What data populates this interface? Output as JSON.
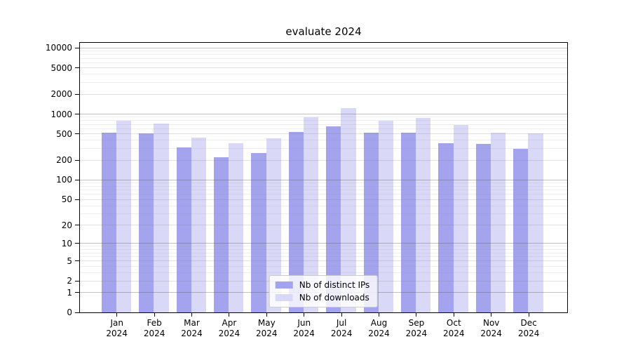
{
  "title": "evaluate 2024",
  "legend": {
    "position": "lower center",
    "items": [
      {
        "label": "Nb of distinct IPs",
        "color": "#a3a3ee"
      },
      {
        "label": "Nb of downloads",
        "color": "#d9d9f7"
      }
    ]
  },
  "y_axis": {
    "tick_labels": [
      "0",
      "1",
      "2",
      "5",
      "10",
      "20",
      "50",
      "100",
      "200",
      "500",
      "1000",
      "2000",
      "5000",
      "10000"
    ]
  },
  "grid_colors": {
    "major": "rgba(80,80,80,0.35)",
    "mid": "rgba(120,120,120,0.22)",
    "minor": "rgba(150,150,150,0.15)"
  },
  "chart_data": {
    "type": "bar",
    "title": "evaluate 2024",
    "categories": [
      "Jan 2024",
      "Feb 2024",
      "Mar 2024",
      "Apr 2024",
      "May 2024",
      "Jun 2024",
      "Jul 2024",
      "Aug 2024",
      "Sep 2024",
      "Oct 2024",
      "Nov 2024",
      "Dec 2024"
    ],
    "series": [
      {
        "name": "Nb of distinct IPs",
        "color": "#a3a3ee",
        "values": [
          520,
          510,
          310,
          220,
          260,
          540,
          660,
          525,
          525,
          360,
          350,
          295
        ]
      },
      {
        "name": "Nb of downloads",
        "color": "#d9d9f7",
        "values": [
          790,
          715,
          440,
          360,
          435,
          905,
          1220,
          800,
          885,
          690,
          520,
          515
        ]
      }
    ],
    "y_scale": "log1p",
    "ylim": [
      0,
      12000
    ],
    "y_ticks": [
      0,
      1,
      2,
      5,
      10,
      20,
      50,
      100,
      200,
      500,
      1000,
      2000,
      5000,
      10000
    ],
    "grid": true,
    "legend_position": "lower center"
  }
}
